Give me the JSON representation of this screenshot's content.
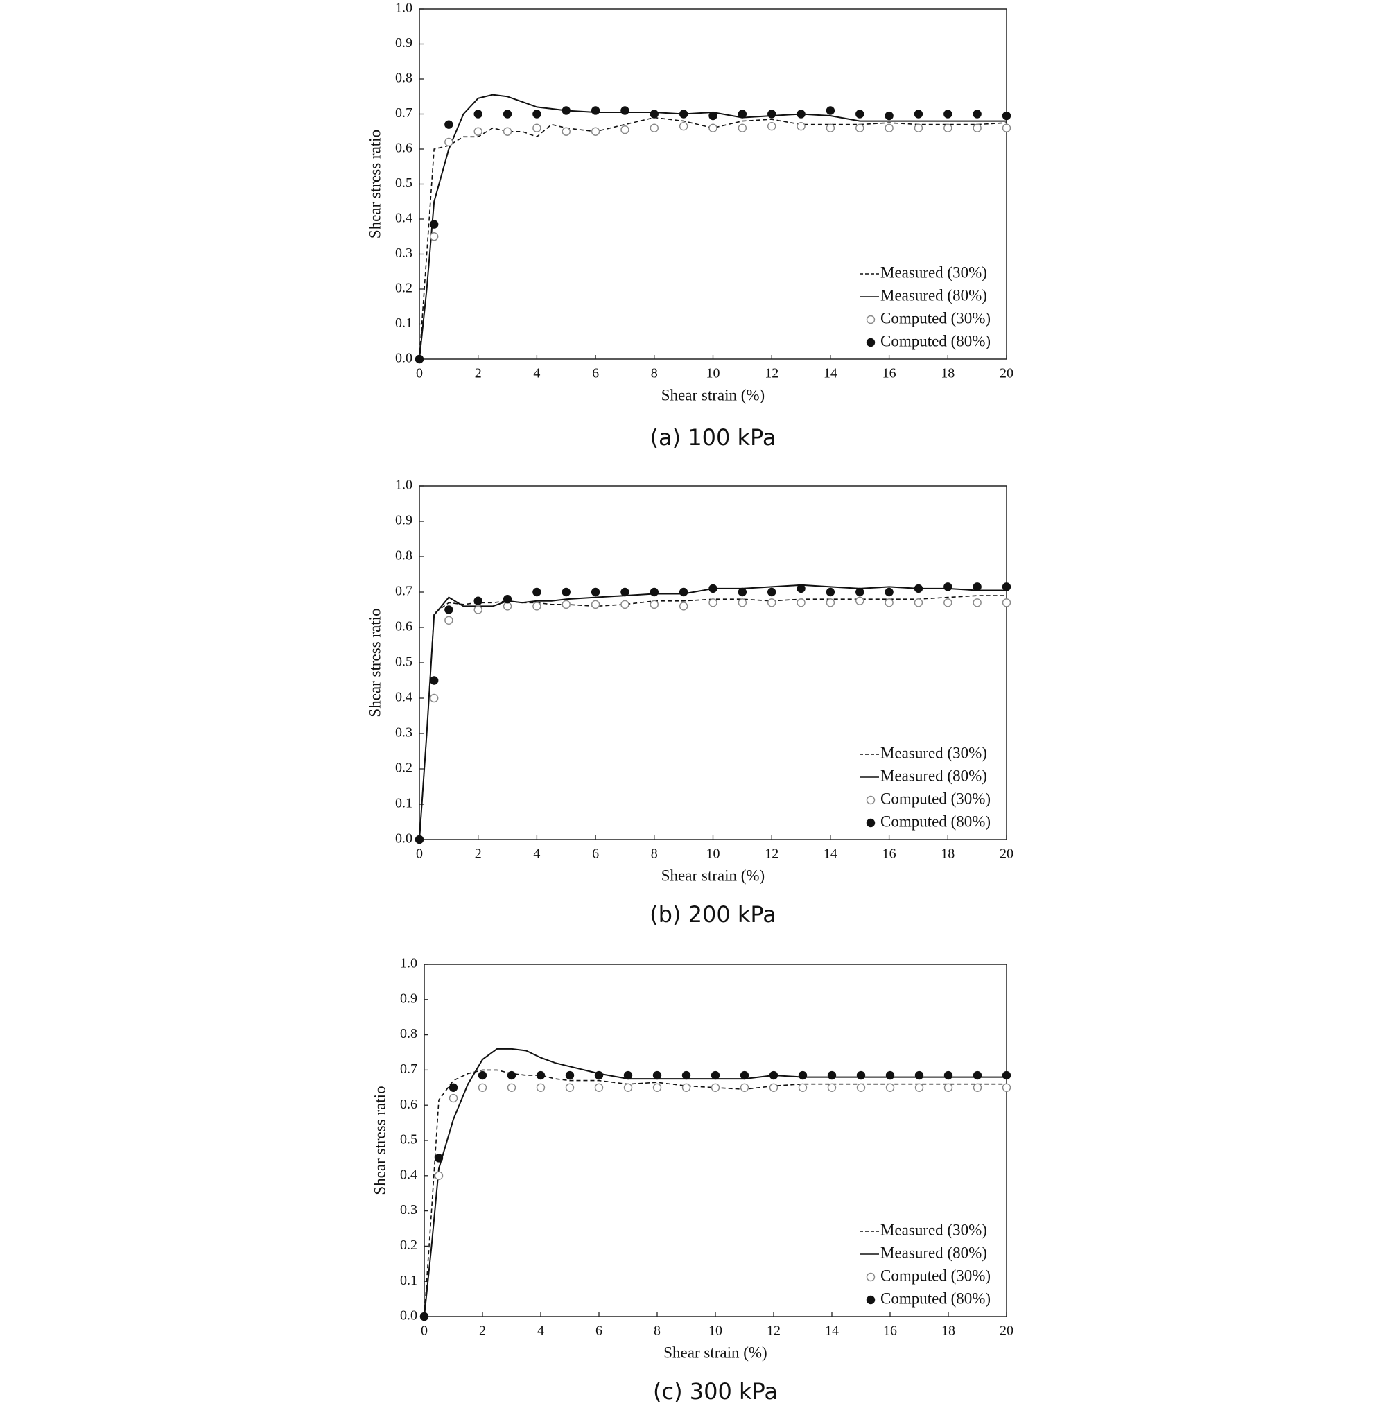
{
  "chart_data": [
    {
      "type": "line",
      "caption": "(a) 100 kPa",
      "x_label": "Shear strain (%)",
      "y_label": "Shear stress ratio",
      "xlim": [
        0,
        20
      ],
      "ylim": [
        0,
        1
      ],
      "xticks": [
        0,
        2,
        4,
        6,
        8,
        10,
        12,
        14,
        16,
        18,
        20
      ],
      "yticks": [
        {
          "value": 0,
          "label": "0.0"
        },
        {
          "value": 0.1,
          "label": "0.1"
        },
        {
          "value": 0.2,
          "label": "0.2"
        },
        {
          "value": 0.3,
          "label": "0.3"
        },
        {
          "value": 0.4,
          "label": "0.4"
        },
        {
          "value": 0.5,
          "label": "0.5"
        },
        {
          "value": 0.6,
          "label": "0.6"
        },
        {
          "value": 0.7,
          "label": "0.7"
        },
        {
          "value": 0.8,
          "label": "0.8"
        },
        {
          "value": 0.9,
          "label": "0.9"
        },
        {
          "value": 1,
          "label": "1.0"
        }
      ],
      "legend": "lower right",
      "series": [
        {
          "name": "Measured (30%)",
          "kind": "line",
          "style": "dashed",
          "color": "#111111",
          "x": [
            0,
            0.25,
            0.5,
            1,
            1.5,
            2,
            2.5,
            3,
            3.5,
            4,
            4.5,
            5,
            6,
            7,
            8,
            9,
            10,
            11,
            12,
            13,
            14,
            15,
            16,
            17,
            18,
            19,
            20
          ],
          "values": [
            0,
            0.3,
            0.6,
            0.61,
            0.635,
            0.635,
            0.66,
            0.65,
            0.65,
            0.635,
            0.67,
            0.66,
            0.65,
            0.67,
            0.69,
            0.68,
            0.66,
            0.68,
            0.685,
            0.67,
            0.67,
            0.67,
            0.675,
            0.67,
            0.67,
            0.67,
            0.675
          ]
        },
        {
          "name": "Measured (80%)",
          "kind": "line",
          "style": "solid",
          "color": "#111111",
          "x": [
            0,
            0.25,
            0.5,
            1,
            1.5,
            2,
            2.5,
            3,
            3.5,
            4,
            4.5,
            5,
            6,
            7,
            8,
            9,
            10,
            11,
            12,
            13,
            14,
            15,
            16,
            17,
            18,
            19,
            20
          ],
          "values": [
            0,
            0.2,
            0.45,
            0.6,
            0.7,
            0.745,
            0.755,
            0.75,
            0.735,
            0.72,
            0.715,
            0.71,
            0.705,
            0.705,
            0.705,
            0.7,
            0.705,
            0.69,
            0.695,
            0.7,
            0.695,
            0.68,
            0.68,
            0.68,
            0.68,
            0.68,
            0.68
          ]
        },
        {
          "name": "Computed (30%)",
          "kind": "scatter",
          "style": "open",
          "color": "#888888",
          "x": [
            0,
            0.5,
            1,
            2,
            3,
            4,
            5,
            6,
            7,
            8,
            9,
            10,
            11,
            12,
            13,
            14,
            15,
            16,
            17,
            18,
            19,
            20
          ],
          "values": [
            0,
            0.35,
            0.62,
            0.65,
            0.65,
            0.66,
            0.65,
            0.65,
            0.655,
            0.66,
            0.665,
            0.66,
            0.66,
            0.665,
            0.665,
            0.66,
            0.66,
            0.66,
            0.66,
            0.66,
            0.66,
            0.66
          ]
        },
        {
          "name": "Computed (80%)",
          "kind": "scatter",
          "style": "filled",
          "color": "#111111",
          "x": [
            0,
            0.5,
            1,
            2,
            3,
            4,
            5,
            6,
            7,
            8,
            9,
            10,
            11,
            12,
            13,
            14,
            15,
            16,
            17,
            18,
            19,
            20
          ],
          "values": [
            0,
            0.385,
            0.67,
            0.7,
            0.7,
            0.7,
            0.71,
            0.71,
            0.71,
            0.7,
            0.7,
            0.695,
            0.7,
            0.7,
            0.7,
            0.71,
            0.7,
            0.695,
            0.7,
            0.7,
            0.7,
            0.695
          ]
        }
      ]
    },
    {
      "type": "line",
      "caption": "(b) 200 kPa",
      "x_label": "Shear strain (%)",
      "y_label": "Shear stress ratio",
      "xlim": [
        0,
        20
      ],
      "ylim": [
        0,
        1
      ],
      "xticks": [
        0,
        2,
        4,
        6,
        8,
        10,
        12,
        14,
        16,
        18,
        20
      ],
      "yticks": [
        {
          "value": 0,
          "label": "0.0"
        },
        {
          "value": 0.1,
          "label": "0.1"
        },
        {
          "value": 0.2,
          "label": "0.2"
        },
        {
          "value": 0.3,
          "label": "0.3"
        },
        {
          "value": 0.4,
          "label": "0.4"
        },
        {
          "value": 0.5,
          "label": "0.5"
        },
        {
          "value": 0.6,
          "label": "0.6"
        },
        {
          "value": 0.7,
          "label": "0.7"
        },
        {
          "value": 0.8,
          "label": "0.8"
        },
        {
          "value": 0.9,
          "label": "0.9"
        },
        {
          "value": 1,
          "label": "1.0"
        }
      ],
      "legend": "lower right",
      "series": [
        {
          "name": "Measured (30%)",
          "kind": "line",
          "style": "dashed",
          "color": "#111111",
          "x": [
            0,
            0.25,
            0.5,
            1,
            1.5,
            2,
            2.5,
            3,
            3.5,
            4,
            4.5,
            5,
            6,
            7,
            8,
            9,
            10,
            11,
            12,
            13,
            14,
            15,
            16,
            17,
            18,
            19,
            20
          ],
          "values": [
            0,
            0.3,
            0.64,
            0.67,
            0.665,
            0.67,
            0.67,
            0.675,
            0.67,
            0.67,
            0.665,
            0.665,
            0.66,
            0.665,
            0.675,
            0.675,
            0.68,
            0.68,
            0.675,
            0.68,
            0.68,
            0.68,
            0.68,
            0.68,
            0.685,
            0.69,
            0.69
          ]
        },
        {
          "name": "Measured (80%)",
          "kind": "line",
          "style": "solid",
          "color": "#111111",
          "x": [
            0,
            0.25,
            0.5,
            1,
            1.5,
            2,
            2.5,
            3,
            3.5,
            4,
            4.5,
            5,
            6,
            7,
            8,
            9,
            10,
            11,
            12,
            13,
            14,
            15,
            16,
            17,
            18,
            19,
            20
          ],
          "values": [
            0,
            0.3,
            0.635,
            0.685,
            0.66,
            0.66,
            0.66,
            0.675,
            0.67,
            0.675,
            0.675,
            0.68,
            0.685,
            0.69,
            0.695,
            0.695,
            0.71,
            0.71,
            0.715,
            0.72,
            0.715,
            0.71,
            0.715,
            0.71,
            0.71,
            0.705,
            0.705
          ]
        },
        {
          "name": "Computed (30%)",
          "kind": "scatter",
          "style": "open",
          "color": "#888888",
          "x": [
            0,
            0.5,
            1,
            2,
            3,
            4,
            5,
            6,
            7,
            8,
            9,
            10,
            11,
            12,
            13,
            14,
            15,
            16,
            17,
            18,
            19,
            20
          ],
          "values": [
            0,
            0.4,
            0.62,
            0.65,
            0.66,
            0.66,
            0.665,
            0.665,
            0.665,
            0.665,
            0.66,
            0.67,
            0.67,
            0.67,
            0.67,
            0.67,
            0.675,
            0.67,
            0.67,
            0.67,
            0.67,
            0.67
          ]
        },
        {
          "name": "Computed (80%)",
          "kind": "scatter",
          "style": "filled",
          "color": "#111111",
          "x": [
            0,
            0.5,
            1,
            2,
            3,
            4,
            5,
            6,
            7,
            8,
            9,
            10,
            11,
            12,
            13,
            14,
            15,
            16,
            17,
            18,
            19,
            20
          ],
          "values": [
            0,
            0.45,
            0.65,
            0.675,
            0.68,
            0.7,
            0.7,
            0.7,
            0.7,
            0.7,
            0.7,
            0.71,
            0.7,
            0.7,
            0.71,
            0.7,
            0.7,
            0.7,
            0.71,
            0.715,
            0.715,
            0.715
          ]
        }
      ]
    },
    {
      "type": "line",
      "caption": "(c) 300 kPa",
      "x_label": "Shear strain (%)",
      "y_label": "Shear stress ratio",
      "xlim": [
        0,
        20
      ],
      "ylim": [
        0,
        1
      ],
      "xticks": [
        0,
        2,
        4,
        6,
        8,
        10,
        12,
        14,
        16,
        18,
        20
      ],
      "yticks": [
        {
          "value": 0,
          "label": "0.0"
        },
        {
          "value": 0.1,
          "label": "0.1"
        },
        {
          "value": 0.2,
          "label": "0.2"
        },
        {
          "value": 0.3,
          "label": "0.3"
        },
        {
          "value": 0.4,
          "label": "0.4"
        },
        {
          "value": 0.5,
          "label": "0.5"
        },
        {
          "value": 0.6,
          "label": "0.6"
        },
        {
          "value": 0.7,
          "label": "0.7"
        },
        {
          "value": 0.8,
          "label": "0.8"
        },
        {
          "value": 0.9,
          "label": "0.9"
        },
        {
          "value": 1,
          "label": "1.0"
        }
      ],
      "legend": "lower right",
      "series": [
        {
          "name": "Measured (30%)",
          "kind": "line",
          "style": "dashed",
          "color": "#111111",
          "x": [
            0,
            0.25,
            0.5,
            1,
            1.5,
            2,
            2.5,
            3,
            3.5,
            4,
            4.5,
            5,
            6,
            7,
            8,
            9,
            10,
            11,
            12,
            13,
            14,
            15,
            16,
            17,
            18,
            19,
            20
          ],
          "values": [
            0,
            0.3,
            0.615,
            0.67,
            0.69,
            0.7,
            0.7,
            0.69,
            0.685,
            0.685,
            0.675,
            0.67,
            0.67,
            0.66,
            0.665,
            0.655,
            0.65,
            0.645,
            0.655,
            0.66,
            0.66,
            0.66,
            0.66,
            0.66,
            0.66,
            0.66,
            0.66
          ]
        },
        {
          "name": "Measured (80%)",
          "kind": "line",
          "style": "solid",
          "color": "#111111",
          "x": [
            0,
            0.25,
            0.5,
            1,
            1.5,
            2,
            2.5,
            3,
            3.5,
            4,
            4.5,
            5,
            6,
            7,
            8,
            9,
            10,
            11,
            12,
            13,
            14,
            15,
            16,
            17,
            18,
            19,
            20
          ],
          "values": [
            0,
            0.2,
            0.42,
            0.56,
            0.66,
            0.73,
            0.76,
            0.76,
            0.755,
            0.735,
            0.72,
            0.71,
            0.69,
            0.675,
            0.675,
            0.675,
            0.675,
            0.675,
            0.685,
            0.68,
            0.68,
            0.68,
            0.68,
            0.68,
            0.68,
            0.68,
            0.68
          ]
        },
        {
          "name": "Computed (30%)",
          "kind": "scatter",
          "style": "open",
          "color": "#888888",
          "x": [
            0,
            0.5,
            1,
            2,
            3,
            4,
            5,
            6,
            7,
            8,
            9,
            10,
            11,
            12,
            13,
            14,
            15,
            16,
            17,
            18,
            19,
            20
          ],
          "values": [
            0,
            0.4,
            0.62,
            0.65,
            0.65,
            0.65,
            0.65,
            0.65,
            0.65,
            0.65,
            0.65,
            0.65,
            0.65,
            0.65,
            0.65,
            0.65,
            0.65,
            0.65,
            0.65,
            0.65,
            0.65,
            0.65
          ]
        },
        {
          "name": "Computed (80%)",
          "kind": "scatter",
          "style": "filled",
          "color": "#111111",
          "x": [
            0,
            0.5,
            1,
            2,
            3,
            4,
            5,
            6,
            7,
            8,
            9,
            10,
            11,
            12,
            13,
            14,
            15,
            16,
            17,
            18,
            19,
            20
          ],
          "values": [
            0,
            0.45,
            0.65,
            0.685,
            0.685,
            0.685,
            0.685,
            0.685,
            0.685,
            0.685,
            0.685,
            0.685,
            0.685,
            0.685,
            0.685,
            0.685,
            0.685,
            0.685,
            0.685,
            0.685,
            0.685,
            0.685
          ]
        }
      ]
    }
  ]
}
